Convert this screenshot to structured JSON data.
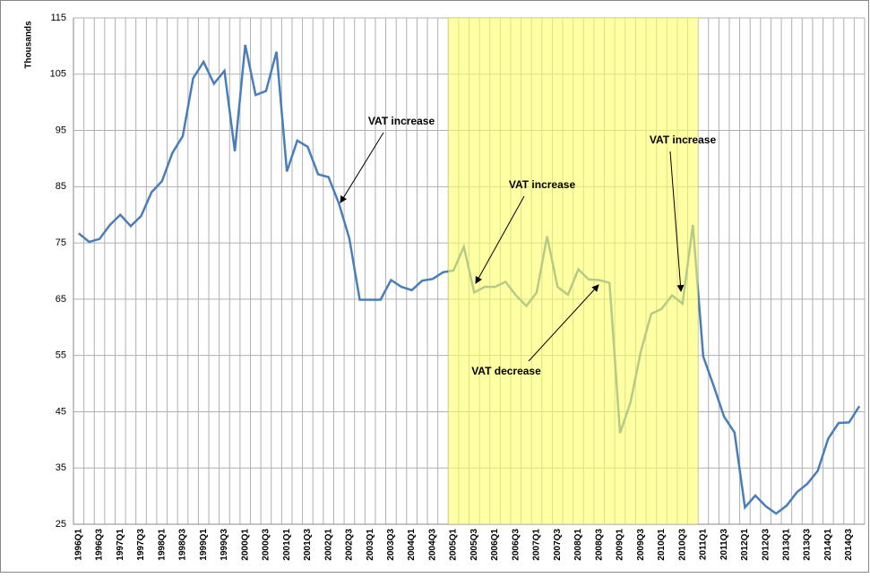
{
  "chart_data": {
    "type": "line",
    "y_axis_label": "Thousands",
    "categories": [
      "1996Q1",
      null,
      "1996Q3",
      null,
      "1997Q1",
      null,
      "1997Q3",
      null,
      "1998Q1",
      null,
      "1998Q3",
      null,
      "1999Q1",
      null,
      "1999Q3",
      null,
      "2000Q1",
      null,
      "2000Q3",
      null,
      "2001Q1",
      null,
      "2001Q3",
      null,
      "2002Q1",
      null,
      "2002Q3",
      null,
      "2003Q1",
      null,
      "2003Q3",
      null,
      "2004Q1",
      null,
      "2004Q3",
      null,
      "2005Q1",
      null,
      "2005Q3",
      null,
      "2006Q1",
      null,
      "2006Q3",
      null,
      "2007Q1",
      null,
      "2007Q3",
      null,
      "2008Q1",
      null,
      "2008Q3",
      null,
      "2009Q1",
      null,
      "2009Q3",
      null,
      "2010Q1",
      null,
      "2010Q3",
      null,
      "2011Q1",
      null,
      "2011Q3",
      null,
      "2012Q1",
      null,
      "2012Q3",
      null,
      "2013Q1",
      null,
      "2013Q3",
      null,
      "2014Q1",
      null,
      "2014Q3",
      null
    ],
    "values": [
      76.7,
      75.2,
      75.7,
      78.2,
      80.0,
      78.0,
      79.8,
      84.0,
      86.0,
      91.0,
      94.0,
      104.3,
      107.2,
      103.3,
      105.6,
      91.3,
      110.2,
      101.3,
      102.0,
      109.0,
      87.7,
      93.2,
      92.1,
      87.2,
      86.7,
      82.0,
      75.8,
      64.9,
      64.9,
      64.9,
      68.4,
      67.2,
      66.6,
      68.3,
      68.6,
      69.8,
      70.1,
      74.3,
      66.2,
      67.2,
      67.2,
      68.1,
      65.7,
      63.8,
      66.2,
      76.2,
      67.2,
      65.8,
      70.3,
      68.5,
      68.4,
      67.9,
      41.2,
      46.6,
      55.7,
      62.4,
      63.3,
      65.7,
      64.2,
      78.2,
      54.8,
      49.6,
      44.1,
      41.3,
      28.0,
      30.1,
      28.2,
      26.9,
      28.3,
      30.7,
      32.2,
      34.5,
      40.2,
      43.0,
      43.1,
      46.0
    ],
    "color": "#4a7ebb",
    "ylim": [
      25,
      115
    ],
    "yticks": [
      25,
      35,
      45,
      55,
      65,
      75,
      85,
      95,
      105,
      115
    ],
    "grid": true,
    "highlight": {
      "start": "2005Q1",
      "end": "2011Q1",
      "color": "#ffff66"
    },
    "annotations": [
      "VAT increase",
      "VAT increase",
      "VAT decrease",
      "VAT increase"
    ]
  }
}
